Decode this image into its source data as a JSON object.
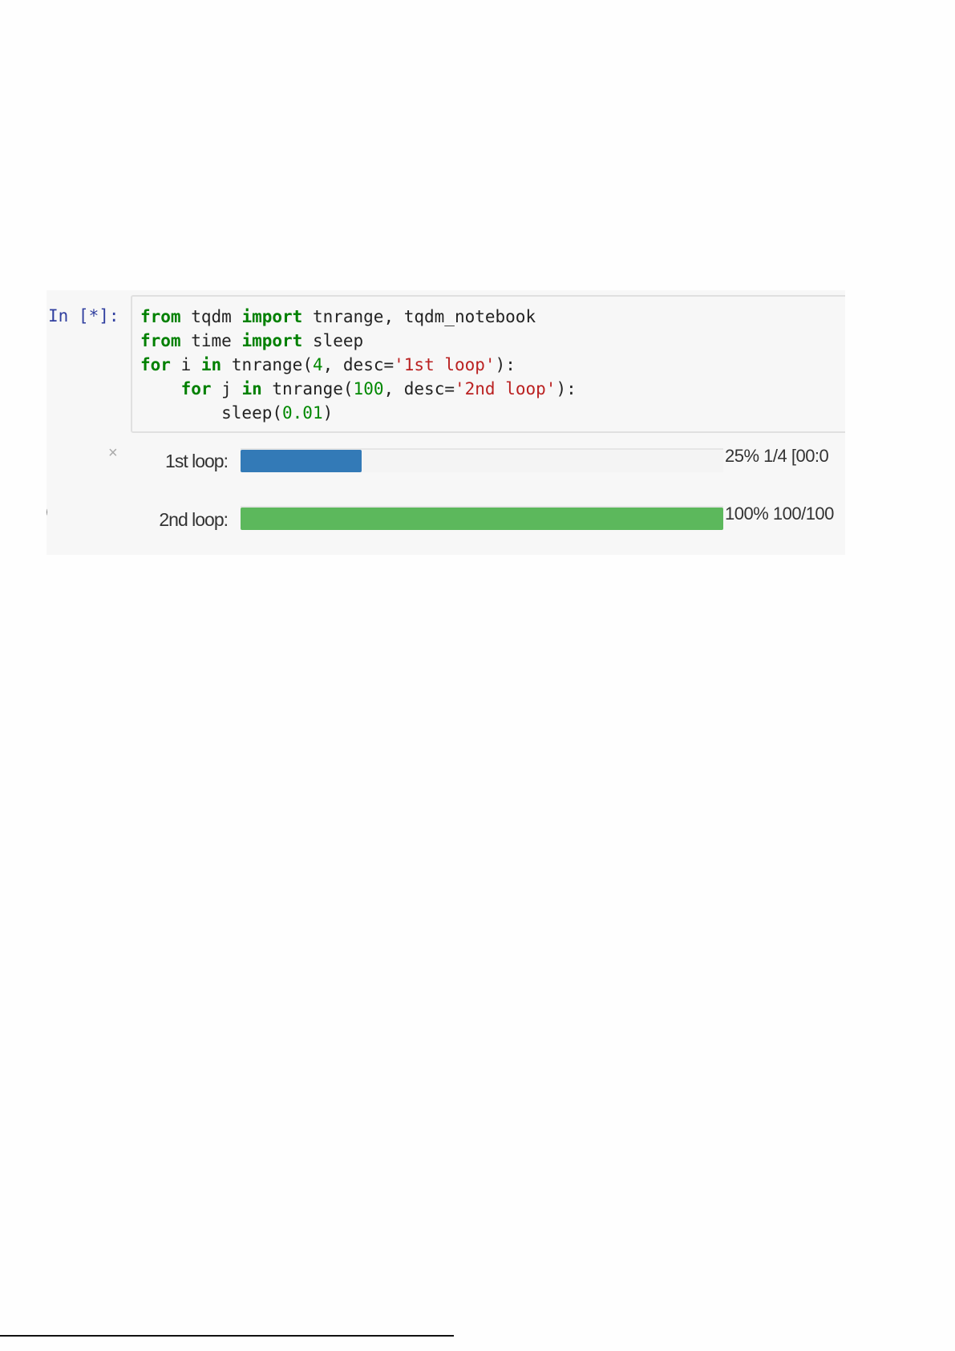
{
  "cell": {
    "prompt": "In [*]:",
    "code_lines": [
      [
        {
          "t": "from",
          "c": "kw"
        },
        {
          "t": " tqdm ",
          "c": ""
        },
        {
          "t": "import",
          "c": "kw"
        },
        {
          "t": " tnrange, tqdm_notebook",
          "c": ""
        }
      ],
      [
        {
          "t": "from",
          "c": "kw"
        },
        {
          "t": " time ",
          "c": ""
        },
        {
          "t": "import",
          "c": "kw"
        },
        {
          "t": " sleep",
          "c": ""
        }
      ],
      [
        {
          "t": "for",
          "c": "kw"
        },
        {
          "t": " i ",
          "c": ""
        },
        {
          "t": "in",
          "c": "kw"
        },
        {
          "t": " tnrange(",
          "c": ""
        },
        {
          "t": "4",
          "c": "num"
        },
        {
          "t": ", desc=",
          "c": ""
        },
        {
          "t": "'1st loop'",
          "c": "str"
        },
        {
          "t": "):",
          "c": ""
        }
      ],
      [
        {
          "t": "    ",
          "c": ""
        },
        {
          "t": "for",
          "c": "kw"
        },
        {
          "t": " j ",
          "c": ""
        },
        {
          "t": "in",
          "c": "kw"
        },
        {
          "t": " tnrange(",
          "c": ""
        },
        {
          "t": "100",
          "c": "num"
        },
        {
          "t": ", desc=",
          "c": ""
        },
        {
          "t": "'2nd loop'",
          "c": "str"
        },
        {
          "t": "):",
          "c": ""
        }
      ],
      [
        {
          "t": "        sleep(",
          "c": ""
        },
        {
          "t": "0.01",
          "c": "num"
        },
        {
          "t": ")",
          "c": ""
        }
      ]
    ]
  },
  "output": {
    "close_icon": "×",
    "left_fragment": ")",
    "bars": [
      {
        "label": "1st loop:",
        "percent": 25,
        "status": "25% 1/4 [00:0",
        "color": "#337ab7"
      },
      {
        "label": "2nd loop:",
        "percent": 100,
        "status": "100% 100/100",
        "color": "#5cb85c"
      }
    ]
  }
}
